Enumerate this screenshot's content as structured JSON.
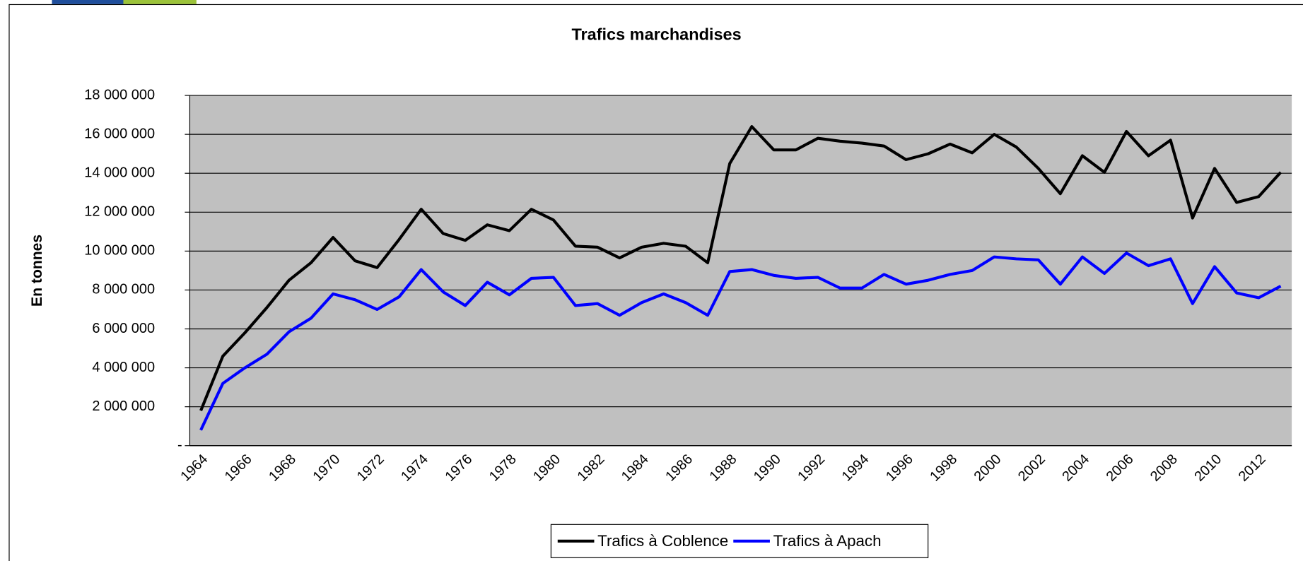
{
  "chart_data": {
    "type": "line",
    "title": "Trafics marchandises",
    "y_label": "En tonnes",
    "categories": [
      "1964",
      null,
      "1966",
      null,
      "1968",
      null,
      "1970",
      null,
      "1972",
      null,
      "1974",
      null,
      "1976",
      null,
      "1978",
      null,
      "1980",
      null,
      "1982",
      null,
      "1984",
      null,
      "1986",
      null,
      "1988",
      null,
      "1990",
      null,
      "1992",
      null,
      "1994",
      null,
      "1996",
      null,
      "1998",
      null,
      "2000",
      null,
      "2002",
      null,
      "2004",
      null,
      "2006",
      null,
      "2008",
      null,
      "2010",
      null,
      "2012",
      null
    ],
    "series": [
      {
        "name": "Trafics à Coblence",
        "color": "#000000",
        "values": [
          1800000,
          4600000,
          5800000,
          7100000,
          8500000,
          9400000,
          10700000,
          9500000,
          9150000,
          10600000,
          12150000,
          10900000,
          10550000,
          11350000,
          11050000,
          12150000,
          11600000,
          10250000,
          10200000,
          9650000,
          10200000,
          10400000,
          10250000,
          9400000,
          14500000,
          16400000,
          15200000,
          15200000,
          15800000,
          15650000,
          15550000,
          15400000,
          14700000,
          15000000,
          15500000,
          15050000,
          16000000,
          15350000,
          14250000,
          12950000,
          14900000,
          14050000,
          16150000,
          14900000,
          15700000,
          11700000,
          14250000,
          12500000,
          12800000,
          14050000
        ]
      },
      {
        "name": "Trafics à Apach",
        "color": "#0000ff",
        "values": [
          800000,
          3200000,
          4000000,
          4700000,
          5850000,
          6550000,
          7800000,
          7500000,
          7000000,
          7650000,
          9050000,
          7900000,
          7200000,
          8400000,
          7750000,
          8600000,
          8650000,
          7200000,
          7300000,
          6700000,
          7350000,
          7800000,
          7350000,
          6700000,
          8950000,
          9050000,
          8750000,
          8600000,
          8650000,
          8100000,
          8100000,
          8800000,
          8300000,
          8500000,
          8800000,
          9000000,
          9700000,
          9600000,
          9550000,
          8300000,
          9700000,
          8850000,
          9900000,
          9250000,
          9600000,
          7300000,
          9200000,
          7850000,
          7600000,
          8200000
        ]
      }
    ],
    "ylim": [
      0,
      18000000
    ],
    "yticks": [
      {
        "value": 0,
        "label": "-"
      },
      {
        "value": 2000000,
        "label": "2 000 000"
      },
      {
        "value": 4000000,
        "label": "4 000 000"
      },
      {
        "value": 6000000,
        "label": "6 000 000"
      },
      {
        "value": 8000000,
        "label": "8 000 000"
      },
      {
        "value": 10000000,
        "label": "10 000 000"
      },
      {
        "value": 12000000,
        "label": "12 000 000"
      },
      {
        "value": 14000000,
        "label": "14 000 000"
      },
      {
        "value": 16000000,
        "label": "16 000 000"
      },
      {
        "value": 18000000,
        "label": "18 000 000"
      }
    ],
    "grid": true,
    "legend": "bottom"
  }
}
